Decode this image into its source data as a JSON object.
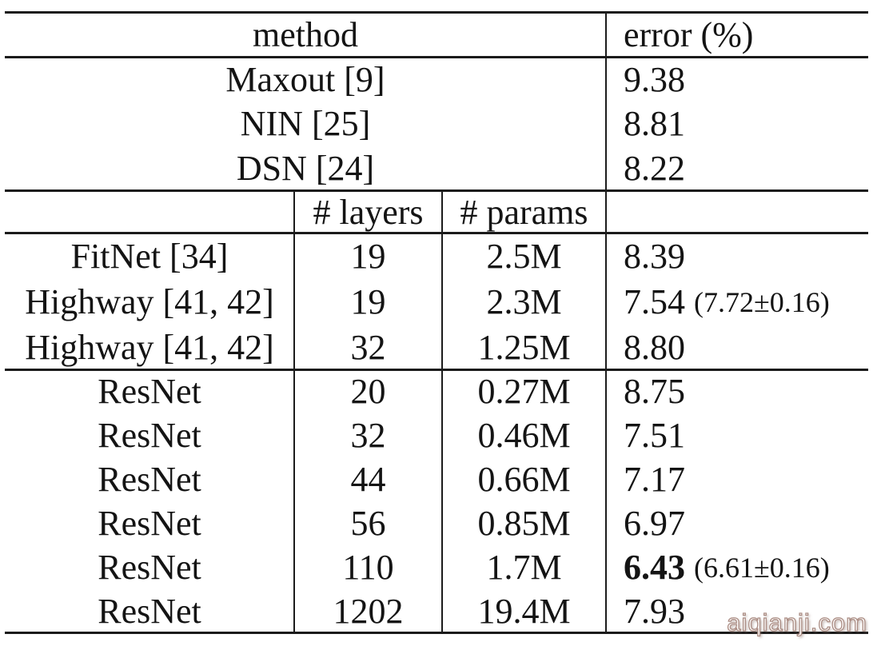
{
  "colors": {
    "background": "#ffffff",
    "ink": "#141414",
    "rule": "#1b1b1b",
    "watermark_fill": "#fdfbfa",
    "watermark_outline": "#ab8d84"
  },
  "watermark": {
    "text": "aiqianji.com"
  },
  "table": {
    "header": {
      "method": "method",
      "error": "error (%)"
    },
    "subheader": {
      "layers": "# layers",
      "params": "# params"
    },
    "rows": [
      {
        "merged": true,
        "method": "Maxout [9]",
        "error": "9.38"
      },
      {
        "merged": true,
        "method": "NIN [25]",
        "error": "8.81"
      },
      {
        "merged": true,
        "method": "DSN [24]",
        "error": "8.22"
      },
      {
        "method": "FitNet [34]",
        "layers": "19",
        "params": "2.5M",
        "error": "8.39"
      },
      {
        "method": "Highway [41, 42]",
        "layers": "19",
        "params": "2.3M",
        "error": "7.54",
        "error_note": "(7.72±0.16)"
      },
      {
        "method": "Highway [41, 42]",
        "layers": "32",
        "params": "1.25M",
        "error": "8.80"
      },
      {
        "method": "ResNet",
        "layers": "20",
        "params": "0.27M",
        "error": "8.75"
      },
      {
        "method": "ResNet",
        "layers": "32",
        "params": "0.46M",
        "error": "7.51"
      },
      {
        "method": "ResNet",
        "layers": "44",
        "params": "0.66M",
        "error": "7.17"
      },
      {
        "method": "ResNet",
        "layers": "56",
        "params": "0.85M",
        "error": "6.97"
      },
      {
        "method": "ResNet",
        "layers": "110",
        "params": "1.7M",
        "error": "6.43",
        "error_bold": true,
        "error_note": "(6.61±0.16)"
      },
      {
        "method": "ResNet",
        "layers": "1202",
        "params": "19.4M",
        "error": "7.93"
      }
    ]
  }
}
